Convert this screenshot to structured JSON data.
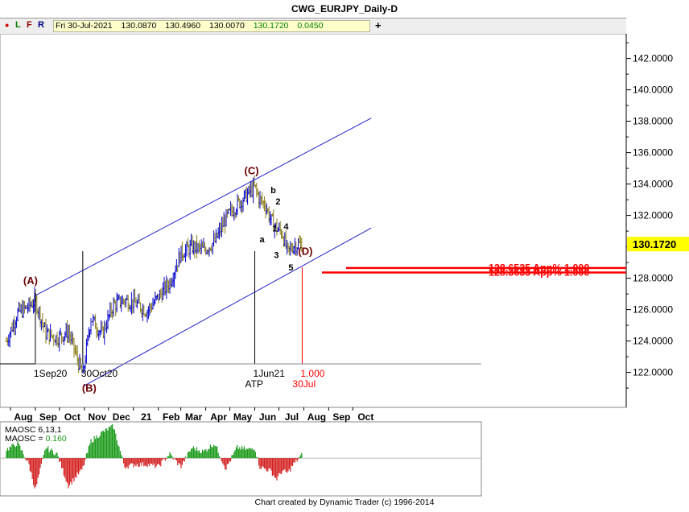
{
  "title": "CWG_EURJPY_Daily-D",
  "toolbar": {
    "flags": [
      "●",
      "L",
      "F",
      "R"
    ],
    "ohlc": {
      "date": "Fri 30-Jul-2021",
      "open": "130.0870",
      "high": "130.4960",
      "low": "130.0070",
      "close": "130.1720",
      "change": "0.0450"
    },
    "plus": "+"
  },
  "colors": {
    "bar_up": "#0000cc",
    "bar_down": "#8a7d1a",
    "channel": "#2222cc",
    "retracement": "#ff0000",
    "wave_label": "#6b0000",
    "price_badge": "#ffff00",
    "osc_up": "#1a9a1a",
    "osc_down": "#d42020"
  },
  "chart_data": [
    {
      "type": "line",
      "series_kind": "ohlc-bars",
      "title": "CWG_EURJPY_Daily-D",
      "ylim": [
        120.5,
        144
      ],
      "y_ticks": [
        "142.0000",
        "140.0000",
        "138.0000",
        "136.0000",
        "134.0000",
        "132.0000",
        "130.0000",
        "128.0000",
        "126.0000",
        "124.0000",
        "122.0000"
      ],
      "x_ticks": [
        "Aug",
        "Sep",
        "Oct",
        "Nov",
        "Dec",
        "21",
        "Feb",
        "Mar",
        "Apr",
        "May",
        "Jun",
        "Jul",
        "Aug",
        "Sep",
        "Oct"
      ],
      "x": [
        "2020-07-27",
        "2020-08-10",
        "2020-08-24",
        "2020-09-01",
        "2020-09-14",
        "2020-09-28",
        "2020-10-12",
        "2020-10-30",
        "2020-11-09",
        "2020-11-23",
        "2020-12-07",
        "2020-12-21",
        "2021-01-04",
        "2021-01-18",
        "2021-02-01",
        "2021-02-15",
        "2021-03-01",
        "2021-03-15",
        "2021-03-29",
        "2021-04-12",
        "2021-04-26",
        "2021-05-10",
        "2021-05-24",
        "2021-06-01",
        "2021-06-07",
        "2021-06-14",
        "2021-06-21",
        "2021-06-28",
        "2021-07-05",
        "2021-07-12",
        "2021-07-19",
        "2021-07-30"
      ],
      "close": [
        124.0,
        125.8,
        126.2,
        126.6,
        124.5,
        124.2,
        124.6,
        121.8,
        125.5,
        124.4,
        126.3,
        126.6,
        126.4,
        125.9,
        126.8,
        127.7,
        129.6,
        130.0,
        129.8,
        130.3,
        131.8,
        132.7,
        133.4,
        133.8,
        133.0,
        132.7,
        131.7,
        131.2,
        130.9,
        129.6,
        130.1,
        130.17
      ],
      "current_price": "130.1720",
      "wave_labels": [
        "(A)",
        "(B)",
        "(C)",
        "(D)",
        "a",
        "b",
        "1",
        "2",
        "3",
        "4",
        "5"
      ],
      "wave_points": [
        {
          "label": "(A)",
          "date": "2020-09-01",
          "price": 126.9
        },
        {
          "label": "(B)",
          "date": "2020-10-30",
          "price": 121.7
        },
        {
          "label": "(C)",
          "date": "2021-06-01",
          "price": 134.1
        },
        {
          "label": "(D)",
          "date": "2021-07-30",
          "price": 129.3
        },
        {
          "label": "a",
          "date": "2021-06-16",
          "price": 130.6
        },
        {
          "label": "b",
          "date": "2021-06-24",
          "price": 132.8
        },
        {
          "label": "1",
          "date": "2021-06-26",
          "price": 131.3
        },
        {
          "label": "2",
          "date": "2021-06-30",
          "price": 132.3
        },
        {
          "label": "3",
          "date": "2021-07-06",
          "price": 129.8
        },
        {
          "label": "4",
          "date": "2021-07-12",
          "price": 130.8
        },
        {
          "label": "5",
          "date": "2021-07-16",
          "price": 129.0
        }
      ],
      "channel": {
        "upper": [
          {
            "date": "2020-09-01",
            "price": 126.9
          },
          {
            "date": "2021-10-24",
            "price": 138.2
          }
        ],
        "lower": [
          {
            "date": "2020-10-30",
            "price": 121.1
          },
          {
            "date": "2021-10-24",
            "price": 131.2
          }
        ]
      },
      "retracements": [
        {
          "label": "128.6535 App% 1.000",
          "price": 128.6535
        },
        {
          "label": "128.3633 App% 1.000",
          "price": 128.3633
        }
      ],
      "time_markers": [
        {
          "top": "1Sep20",
          "bottom": "",
          "date": "2020-09-01"
        },
        {
          "top": "30Oct20",
          "bottom": "",
          "date": "2020-10-30"
        },
        {
          "top": "1Jun21",
          "bottom": "ATP",
          "date": "2021-06-01"
        },
        {
          "top": "1.000",
          "bottom": "30Jul",
          "date": "2021-07-30"
        }
      ]
    },
    {
      "type": "bar",
      "title": "",
      "ylim": [
        -1.6,
        1.6
      ],
      "legend": [
        {
          "name": "MAOSC 6,13,1",
          "value": ""
        },
        {
          "name": "MAOSC",
          "value": "0.160"
        }
      ],
      "x": [
        "2020-07-27",
        "2020-08-10",
        "2020-08-24",
        "2020-09-01",
        "2020-09-14",
        "2020-09-28",
        "2020-10-12",
        "2020-10-30",
        "2020-11-09",
        "2020-11-23",
        "2020-12-07",
        "2020-12-21",
        "2021-01-04",
        "2021-01-18",
        "2021-02-01",
        "2021-02-15",
        "2021-03-01",
        "2021-03-15",
        "2021-03-29",
        "2021-04-12",
        "2021-04-26",
        "2021-05-10",
        "2021-05-24",
        "2021-06-01",
        "2021-06-07",
        "2021-06-14",
        "2021-06-21",
        "2021-06-28",
        "2021-07-05",
        "2021-07-12",
        "2021-07-19",
        "2021-07-30"
      ],
      "values": [
        0.4,
        0.7,
        -0.3,
        -1.5,
        0.5,
        0.2,
        -1.3,
        -0.5,
        0.8,
        1.2,
        1.5,
        -0.4,
        -0.3,
        -0.3,
        -0.4,
        0.2,
        -0.4,
        0.5,
        0.3,
        0.7,
        -0.5,
        0.5,
        0.4,
        0.5,
        -0.4,
        -0.5,
        -0.6,
        -1.0,
        -0.6,
        -0.7,
        -0.3,
        0.16
      ]
    }
  ],
  "footer": "Chart created by Dynamic Trader  (c) 1996-2014"
}
